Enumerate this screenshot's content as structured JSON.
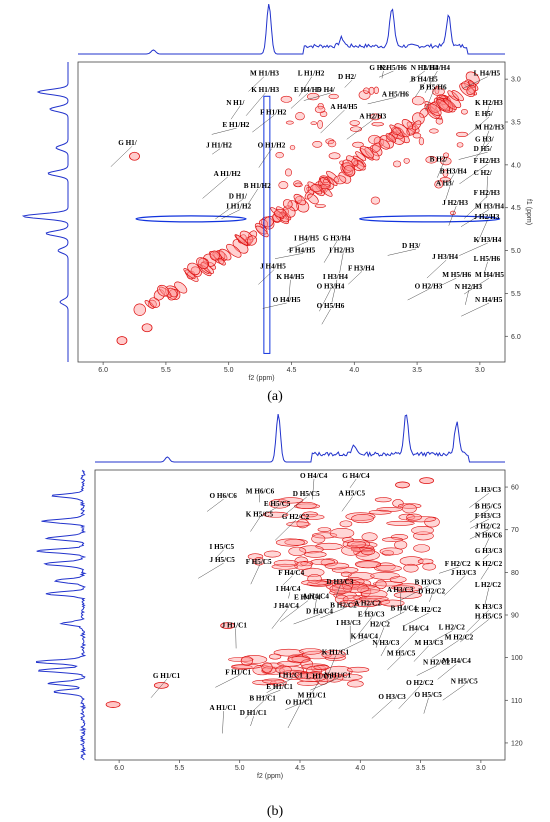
{
  "captions": {
    "a": "(a)",
    "b": "(b)"
  },
  "colors": {
    "spectrum": "#2233cc",
    "positive_contour": "#dd1111",
    "positive_fill": "#ff9999",
    "negative_contour": "#1133dd"
  },
  "chart_data": [
    {
      "type": "heatmap",
      "subtype": "2D NMR COSY-type spectrum",
      "xlabel": "f2 (ppm)",
      "ylabel": "f1 (ppm)",
      "xlim": [
        6.2,
        2.8
      ],
      "ylim": [
        2.8,
        6.3
      ],
      "x_ticks": [
        "6.0",
        "5.5",
        "5.0",
        "4.5",
        "4.0",
        "3.5",
        "3.0"
      ],
      "y_ticks": [
        "3.0",
        "3.5",
        "4.0",
        "4.5",
        "5.0",
        "5.5",
        "6.0"
      ],
      "annotations": [
        {
          "text": "N H5/H6",
          "x": 3.8,
          "y": 2.7
        },
        {
          "text": "N H3/H4",
          "x": 3.55,
          "y": 2.65
        },
        {
          "text": "G H2/",
          "x": 3.88,
          "y": 2.88
        },
        {
          "text": "L H3/H4",
          "x": 3.45,
          "y": 2.86
        },
        {
          "text": "M H1/H3",
          "x": 4.83,
          "y": 2.96
        },
        {
          "text": "L H1/H2",
          "x": 4.45,
          "y": 2.96
        },
        {
          "text": "D H2/",
          "x": 4.13,
          "y": 3.0
        },
        {
          "text": "B H4/H5",
          "x": 3.55,
          "y": 3.03
        },
        {
          "text": "L H4/H5",
          "x": 3.05,
          "y": 2.96
        },
        {
          "text": "K H1/H3",
          "x": 4.82,
          "y": 3.15
        },
        {
          "text": "E H4/H5",
          "x": 4.48,
          "y": 3.15
        },
        {
          "text": "D H4/",
          "x": 4.3,
          "y": 3.15
        },
        {
          "text": "B H5/H6",
          "x": 3.48,
          "y": 3.12
        },
        {
          "text": "A H5/H6",
          "x": 3.78,
          "y": 3.2
        },
        {
          "text": "N H1/",
          "x": 5.02,
          "y": 3.3
        },
        {
          "text": "A H4/H5",
          "x": 4.19,
          "y": 3.35
        },
        {
          "text": "K H2/H3",
          "x": 3.03,
          "y": 3.3
        },
        {
          "text": "F H1/H2",
          "x": 4.75,
          "y": 3.41
        },
        {
          "text": "A H2/H3",
          "x": 3.96,
          "y": 3.46
        },
        {
          "text": "E H5/",
          "x": 3.02,
          "y": 3.43
        },
        {
          "text": "E H1/H2",
          "x": 5.05,
          "y": 3.56
        },
        {
          "text": "M H2/H3",
          "x": 3.0,
          "y": 3.59
        },
        {
          "text": "G H3/",
          "x": 3.02,
          "y": 3.73
        },
        {
          "text": "J H1/H2",
          "x": 5.18,
          "y": 3.8
        },
        {
          "text": "O H1/H2",
          "x": 4.77,
          "y": 3.8
        },
        {
          "text": "D H5/",
          "x": 3.05,
          "y": 3.84
        },
        {
          "text": "G H1/",
          "x": 5.88,
          "y": 3.77
        },
        {
          "text": "B H2/",
          "x": 3.4,
          "y": 3.96
        },
        {
          "text": "F H2/H3",
          "x": 3.05,
          "y": 3.98
        },
        {
          "text": "A H1/H2",
          "x": 5.12,
          "y": 4.13
        },
        {
          "text": "B H3/H4",
          "x": 3.32,
          "y": 4.1
        },
        {
          "text": "C H2/",
          "x": 3.05,
          "y": 4.12
        },
        {
          "text": "B H1/H2",
          "x": 4.88,
          "y": 4.27
        },
        {
          "text": "A H3/",
          "x": 3.35,
          "y": 4.24
        },
        {
          "text": "D H1/",
          "x": 5.0,
          "y": 4.39
        },
        {
          "text": "F H2/H3",
          "x": 3.05,
          "y": 4.35
        },
        {
          "text": "I H1/H2",
          "x": 5.02,
          "y": 4.51
        },
        {
          "text": "J H2/H3",
          "x": 3.3,
          "y": 4.47
        },
        {
          "text": "M H3/H4",
          "x": 3.03,
          "y": 4.51
        },
        {
          "text": "J H2/H3",
          "x": 3.05,
          "y": 4.63
        },
        {
          "text": "I H4/H5",
          "x": 4.48,
          "y": 4.88
        },
        {
          "text": "G H3/H4",
          "x": 4.25,
          "y": 4.88
        },
        {
          "text": "D H3/",
          "x": 3.62,
          "y": 4.97
        },
        {
          "text": "K H3/H4",
          "x": 3.05,
          "y": 4.9
        },
        {
          "text": "F H4/H5",
          "x": 4.52,
          "y": 5.02
        },
        {
          "text": "I H2/H3",
          "x": 4.2,
          "y": 5.02
        },
        {
          "text": "J H3/H4",
          "x": 3.38,
          "y": 5.1
        },
        {
          "text": "L H5/H6",
          "x": 3.05,
          "y": 5.12
        },
        {
          "text": "J H4/H5",
          "x": 4.75,
          "y": 5.21
        },
        {
          "text": "F H3/H4",
          "x": 4.05,
          "y": 5.23
        },
        {
          "text": "M H5/H6",
          "x": 3.3,
          "y": 5.31
        },
        {
          "text": "M H4/H5",
          "x": 3.03,
          "y": 5.31
        },
        {
          "text": "K H4/H5",
          "x": 4.62,
          "y": 5.33
        },
        {
          "text": "I H3/H4",
          "x": 4.25,
          "y": 5.33
        },
        {
          "text": "O H2/H3",
          "x": 3.52,
          "y": 5.44
        },
        {
          "text": "N H2/H3",
          "x": 3.2,
          "y": 5.45
        },
        {
          "text": "O H3/H4",
          "x": 4.3,
          "y": 5.44
        },
        {
          "text": "O H4/H5",
          "x": 4.65,
          "y": 5.6
        },
        {
          "text": "O H5/H6",
          "x": 4.3,
          "y": 5.67
        },
        {
          "text": "N H4/H5",
          "x": 3.0,
          "y": 5.6
        }
      ]
    },
    {
      "type": "heatmap",
      "subtype": "2D NMR HSQC-type spectrum",
      "xlabel": "f2 (ppm)",
      "ylabel": "",
      "xlim": [
        6.2,
        2.8
      ],
      "ylim": [
        56,
        124
      ],
      "x_ticks": [
        "6.0",
        "5.5",
        "5.0",
        "4.5",
        "4.0",
        "3.5",
        "3.0"
      ],
      "y_ticks": [
        "60",
        "70",
        "80",
        "90",
        "100",
        "110",
        "120"
      ],
      "annotations": [
        {
          "text": "O H4/C4",
          "x": 4.5,
          "y": 57.3
        },
        {
          "text": "G H4/C4",
          "x": 4.15,
          "y": 57.3
        },
        {
          "text": "M H6/C6",
          "x": 4.95,
          "y": 61.5
        },
        {
          "text": "D H5/C5",
          "x": 4.56,
          "y": 62.1
        },
        {
          "text": "A H5/C5",
          "x": 4.18,
          "y": 62.0
        },
        {
          "text": "L H3/C3",
          "x": 3.05,
          "y": 61.2
        },
        {
          "text": "O H6/C6",
          "x": 5.25,
          "y": 62.6
        },
        {
          "text": "E H5/C5",
          "x": 4.8,
          "y": 64.4
        },
        {
          "text": "B H5/C5",
          "x": 3.05,
          "y": 65.0
        },
        {
          "text": "K H5/C5",
          "x": 4.95,
          "y": 66.9
        },
        {
          "text": "G H2/C2",
          "x": 4.65,
          "y": 67.5
        },
        {
          "text": "F H3/C3",
          "x": 3.05,
          "y": 67.3
        },
        {
          "text": "J H2/C2",
          "x": 3.02,
          "y": 69.7
        },
        {
          "text": "N H6/C6",
          "x": 3.0,
          "y": 71.8
        },
        {
          "text": "I H5/C5",
          "x": 5.25,
          "y": 74.5
        },
        {
          "text": "G H3/C3",
          "x": 3.05,
          "y": 75.5
        },
        {
          "text": "J H5/C5",
          "x": 5.25,
          "y": 77.6
        },
        {
          "text": "F H5/C5",
          "x": 4.95,
          "y": 78.0
        },
        {
          "text": "F H2/C2",
          "x": 3.3,
          "y": 78.5
        },
        {
          "text": "K H2/C2",
          "x": 3.05,
          "y": 78.5
        },
        {
          "text": "F H4/C4",
          "x": 4.68,
          "y": 80.6
        },
        {
          "text": "J H3/C3",
          "x": 3.25,
          "y": 80.6
        },
        {
          "text": "D H3/C3",
          "x": 4.28,
          "y": 82.7
        },
        {
          "text": "A H3/C3",
          "x": 3.78,
          "y": 84.6
        },
        {
          "text": "B H3/C3",
          "x": 3.55,
          "y": 82.9
        },
        {
          "text": "L H2/C2",
          "x": 3.05,
          "y": 83.4
        },
        {
          "text": "I H4/C4",
          "x": 4.7,
          "y": 84.4
        },
        {
          "text": "A H4/C4",
          "x": 4.48,
          "y": 86.1
        },
        {
          "text": "E H4/C4",
          "x": 4.55,
          "y": 86.4
        },
        {
          "text": "D H2/C2",
          "x": 3.52,
          "y": 84.9
        },
        {
          "text": "B H2/C2",
          "x": 4.25,
          "y": 88.2
        },
        {
          "text": "A H2/C2",
          "x": 4.05,
          "y": 87.8
        },
        {
          "text": "E H2/C2",
          "x": 3.55,
          "y": 89.3
        },
        {
          "text": "K H3/C3",
          "x": 3.05,
          "y": 88.6
        },
        {
          "text": "J H4/C4",
          "x": 4.72,
          "y": 88.3
        },
        {
          "text": "D H4/C4",
          "x": 4.45,
          "y": 89.6
        },
        {
          "text": "E H3/C3",
          "x": 4.02,
          "y": 90.3
        },
        {
          "text": "B H4/C4",
          "x": 3.75,
          "y": 89.0
        },
        {
          "text": "H H5/C5",
          "x": 3.05,
          "y": 90.8
        },
        {
          "text": "I H3/C3",
          "x": 4.2,
          "y": 92.3
        },
        {
          "text": "H2/C2",
          "x": 3.92,
          "y": 92.7
        },
        {
          "text": "L H4/C4",
          "x": 3.65,
          "y": 93.6
        },
        {
          "text": "L H2/C2",
          "x": 3.35,
          "y": 93.4
        },
        {
          "text": "J H1/C1",
          "x": 5.15,
          "y": 92.9
        },
        {
          "text": "K H4/C4",
          "x": 4.08,
          "y": 95.5
        },
        {
          "text": "N H3/C3",
          "x": 3.9,
          "y": 97.0
        },
        {
          "text": "M H3/C3",
          "x": 3.55,
          "y": 97.0
        },
        {
          "text": "M H2/C2",
          "x": 3.3,
          "y": 95.7
        },
        {
          "text": "K H1/C1",
          "x": 4.32,
          "y": 99.3
        },
        {
          "text": "M H5/C5",
          "x": 3.78,
          "y": 99.5
        },
        {
          "text": "N H2/C2",
          "x": 3.48,
          "y": 101.6
        },
        {
          "text": "M H4/C4",
          "x": 3.32,
          "y": 101.3
        },
        {
          "text": "G H1/C1",
          "x": 5.72,
          "y": 104.8
        },
        {
          "text": "F H1/C1",
          "x": 5.12,
          "y": 103.9
        },
        {
          "text": "I H1/C1",
          "x": 4.68,
          "y": 104.6
        },
        {
          "text": "L H1/C1",
          "x": 4.45,
          "y": 104.9
        },
        {
          "text": "N H1/C1",
          "x": 4.3,
          "y": 104.6
        },
        {
          "text": "E H1/C1",
          "x": 4.78,
          "y": 107.4
        },
        {
          "text": "O H2/C2",
          "x": 3.62,
          "y": 106.4
        },
        {
          "text": "N H5/C5",
          "x": 3.25,
          "y": 106.1
        },
        {
          "text": "O H3/C3",
          "x": 3.85,
          "y": 109.7
        },
        {
          "text": "O H5/C5",
          "x": 3.55,
          "y": 109.2
        },
        {
          "text": "M H1/C1",
          "x": 4.52,
          "y": 109.4
        },
        {
          "text": "B H1/C1",
          "x": 4.92,
          "y": 110.0
        },
        {
          "text": "O H1/C1",
          "x": 4.62,
          "y": 111.0
        },
        {
          "text": "A H1/C1",
          "x": 5.25,
          "y": 112.3
        },
        {
          "text": "D H1/C1",
          "x": 5.0,
          "y": 113.5
        }
      ]
    }
  ]
}
